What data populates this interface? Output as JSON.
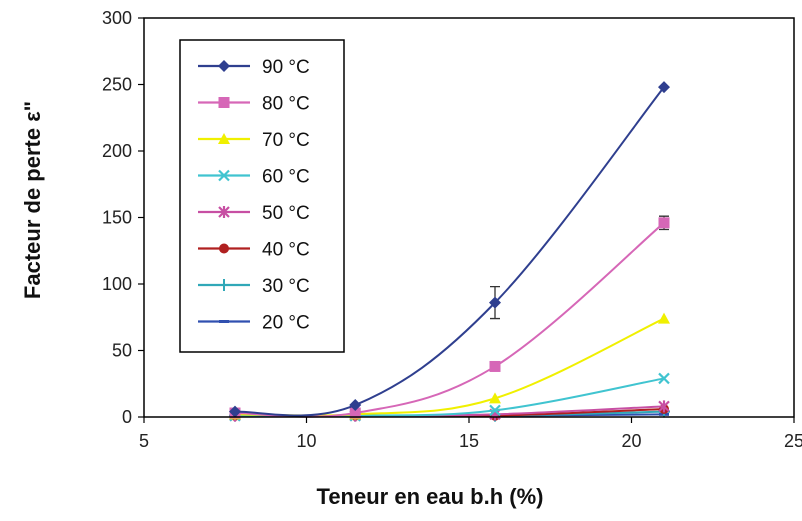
{
  "chart_data": {
    "type": "line",
    "xlabel": "Teneur en eau b.h (%)",
    "ylabel": "Facteur de perte ε\"",
    "xlim": [
      5,
      25
    ],
    "ylim": [
      0,
      300
    ],
    "x_ticks": [
      "5",
      "10",
      "15",
      "20",
      "25"
    ],
    "y_ticks": [
      "0",
      "50",
      "100",
      "150",
      "200",
      "250",
      "300"
    ],
    "grid": false,
    "legend_position": "top-left",
    "x": [
      7.8,
      11.5,
      15.8,
      21.0
    ],
    "series": [
      {
        "name": "90 °C",
        "color": "#2f3f8f",
        "marker": "diamond",
        "values": [
          4,
          9,
          86,
          248
        ],
        "error": [
          0,
          0,
          12,
          0
        ]
      },
      {
        "name": "80 °C",
        "color": "#d667b7",
        "marker": "square",
        "values": [
          3,
          3,
          38,
          146
        ],
        "error": [
          0,
          0,
          0,
          5
        ]
      },
      {
        "name": "70 °C",
        "color": "#f0f000",
        "marker": "triangle",
        "values": [
          2,
          2,
          14,
          74
        ],
        "error": [
          0,
          0,
          0,
          0
        ]
      },
      {
        "name": "60 °C",
        "color": "#40c4d0",
        "marker": "x",
        "values": [
          1,
          1,
          5,
          29
        ],
        "error": [
          0,
          0,
          0,
          0
        ]
      },
      {
        "name": "50 °C",
        "color": "#c74fa3",
        "marker": "star",
        "values": [
          1,
          1,
          2,
          8
        ],
        "error": [
          0,
          0,
          0,
          0
        ]
      },
      {
        "name": "40 °C",
        "color": "#b02020",
        "marker": "circle",
        "values": [
          1,
          1,
          1,
          6
        ],
        "error": [
          0,
          0,
          0,
          0
        ]
      },
      {
        "name": "30 °C",
        "color": "#30a8b8",
        "marker": "plus",
        "values": [
          1,
          1,
          1,
          4
        ],
        "error": [
          0,
          0,
          0,
          0
        ]
      },
      {
        "name": "20 °C",
        "color": "#3050b0",
        "marker": "dash",
        "values": [
          1,
          1,
          1,
          2
        ],
        "error": [
          0,
          0,
          0,
          0
        ]
      }
    ]
  }
}
